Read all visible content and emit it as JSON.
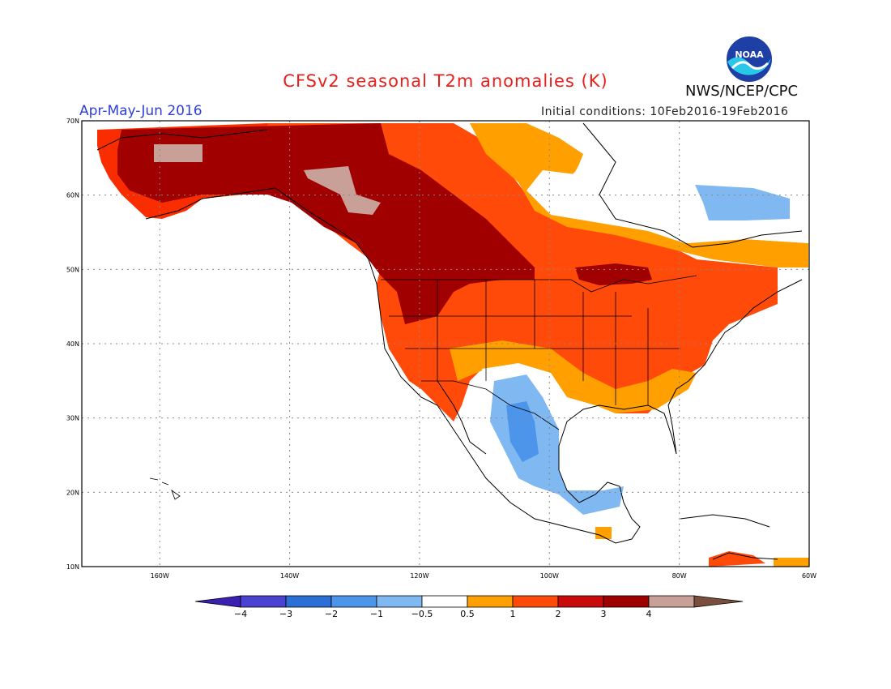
{
  "title": "CFSv2 seasonal T2m anomalies (K)",
  "period": "Apr-May-Jun 2016",
  "initial_conditions": "Initial conditions: 10Feb2016-19Feb2016",
  "agency": "NWS/NCEP/CPC",
  "logo_text": "NOAA",
  "map": {
    "lat_ticks": [
      "70N",
      "60N",
      "50N",
      "40N",
      "30N",
      "20N",
      "10N"
    ],
    "lon_ticks": [
      "160W",
      "140W",
      "120W",
      "100W",
      "80W",
      "60W"
    ],
    "extent": {
      "lon_min": -172,
      "lon_max": -60,
      "lat_min": 10,
      "lat_max": 70
    }
  },
  "colorbar": {
    "labels": [
      "-4",
      "-3",
      "-2",
      "-1",
      "-0.5",
      "0.5",
      "1",
      "2",
      "3",
      "4"
    ],
    "colors": [
      "#3a1fb0",
      "#4a42d0",
      "#2b6fd6",
      "#4d95ea",
      "#80b8f2",
      "#ffffff",
      "#ff9f00",
      "#ff4a0a",
      "#c80a0a",
      "#9e0000",
      "#c9a098",
      "#7a4e3c"
    ]
  },
  "colors": {
    "title": "#e8201c",
    "period": "#2d3fd6",
    "cat_dark_red": "#a00000",
    "cat_red": "#fa2d00",
    "cat_orange_red": "#ff4a0a",
    "cat_orange": "#ff9f00",
    "cat_light_blue": "#80b8f2",
    "cat_blue": "#4d95ea",
    "cat_tan": "#c9a098"
  }
}
